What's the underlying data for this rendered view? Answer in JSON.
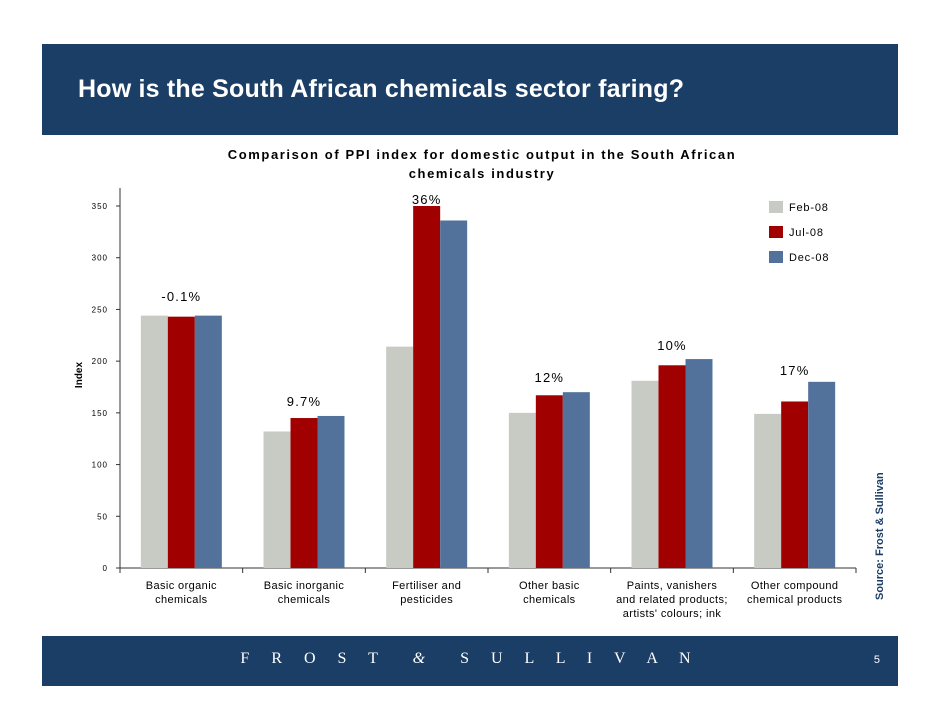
{
  "slide": {
    "title": "How is the South African chemicals sector faring?",
    "source": "Source: Frost & Sullivan",
    "logo": "FROST & SULLIVAN",
    "page_number": "5"
  },
  "colors": {
    "header_bg": "#1b3e66",
    "feb_08": "#c8cbc3",
    "jul_08": "#a00000",
    "dec_08": "#52729b"
  },
  "chart_data": {
    "type": "bar",
    "title_lines": [
      "Comparison of PPI index for domestic output in the South African",
      "chemicals industry"
    ],
    "ylabel": "Index",
    "xlabel": "",
    "ylim": [
      0,
      350
    ],
    "yticks": [
      0,
      50,
      100,
      150,
      200,
      250,
      300,
      350
    ],
    "grid": false,
    "legend_position": "top-right",
    "categories": [
      [
        "Basic organic",
        "chemicals"
      ],
      [
        "Basic inorganic",
        "chemicals"
      ],
      [
        "Fertiliser and",
        "pesticides"
      ],
      [
        "Other basic",
        "chemicals"
      ],
      [
        "Paints, vanishers",
        "and related products;",
        "artists' colours; ink"
      ],
      [
        "Other compound",
        "chemical products"
      ]
    ],
    "series": [
      {
        "name": "Feb-08",
        "color": "#c8cbc3",
        "values": [
          244,
          132,
          214,
          150,
          181,
          149
        ]
      },
      {
        "name": "Jul-08",
        "color": "#a00000",
        "values": [
          243,
          145,
          350,
          167,
          196,
          161
        ]
      },
      {
        "name": "Dec-08",
        "color": "#52729b",
        "values": [
          244,
          147,
          336,
          170,
          202,
          180
        ]
      }
    ],
    "annotations": [
      "-0.1%",
      "9.7%",
      "36%",
      "12%",
      "10%",
      "17%"
    ]
  }
}
